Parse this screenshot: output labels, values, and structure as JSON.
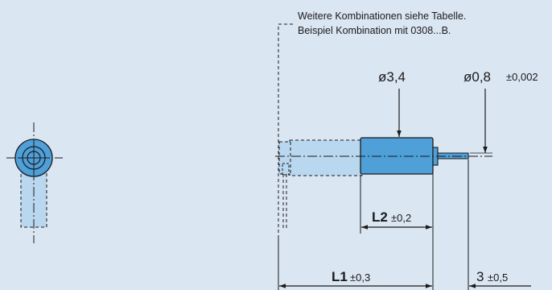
{
  "notes": {
    "line1": "Weitere Kombinationen siehe Tabelle.",
    "line2": "Beispiel Kombination mit 0308...B."
  },
  "dimensions": {
    "outer_diameter": "ø3,4",
    "shaft_diameter": "ø0,8",
    "shaft_tolerance": "±0,002",
    "l2_label": "L2",
    "l2_tolerance": "±0,2",
    "l1_label": "L1",
    "l1_tolerance": "±0,3",
    "shaft_length": "3",
    "shaft_length_tolerance": "±0,5"
  },
  "colors": {
    "background": "#dbe6f3",
    "motor_body": "#4f9fd8",
    "ghost_body": "#b9d7ef",
    "line": "#1a1a1a"
  }
}
